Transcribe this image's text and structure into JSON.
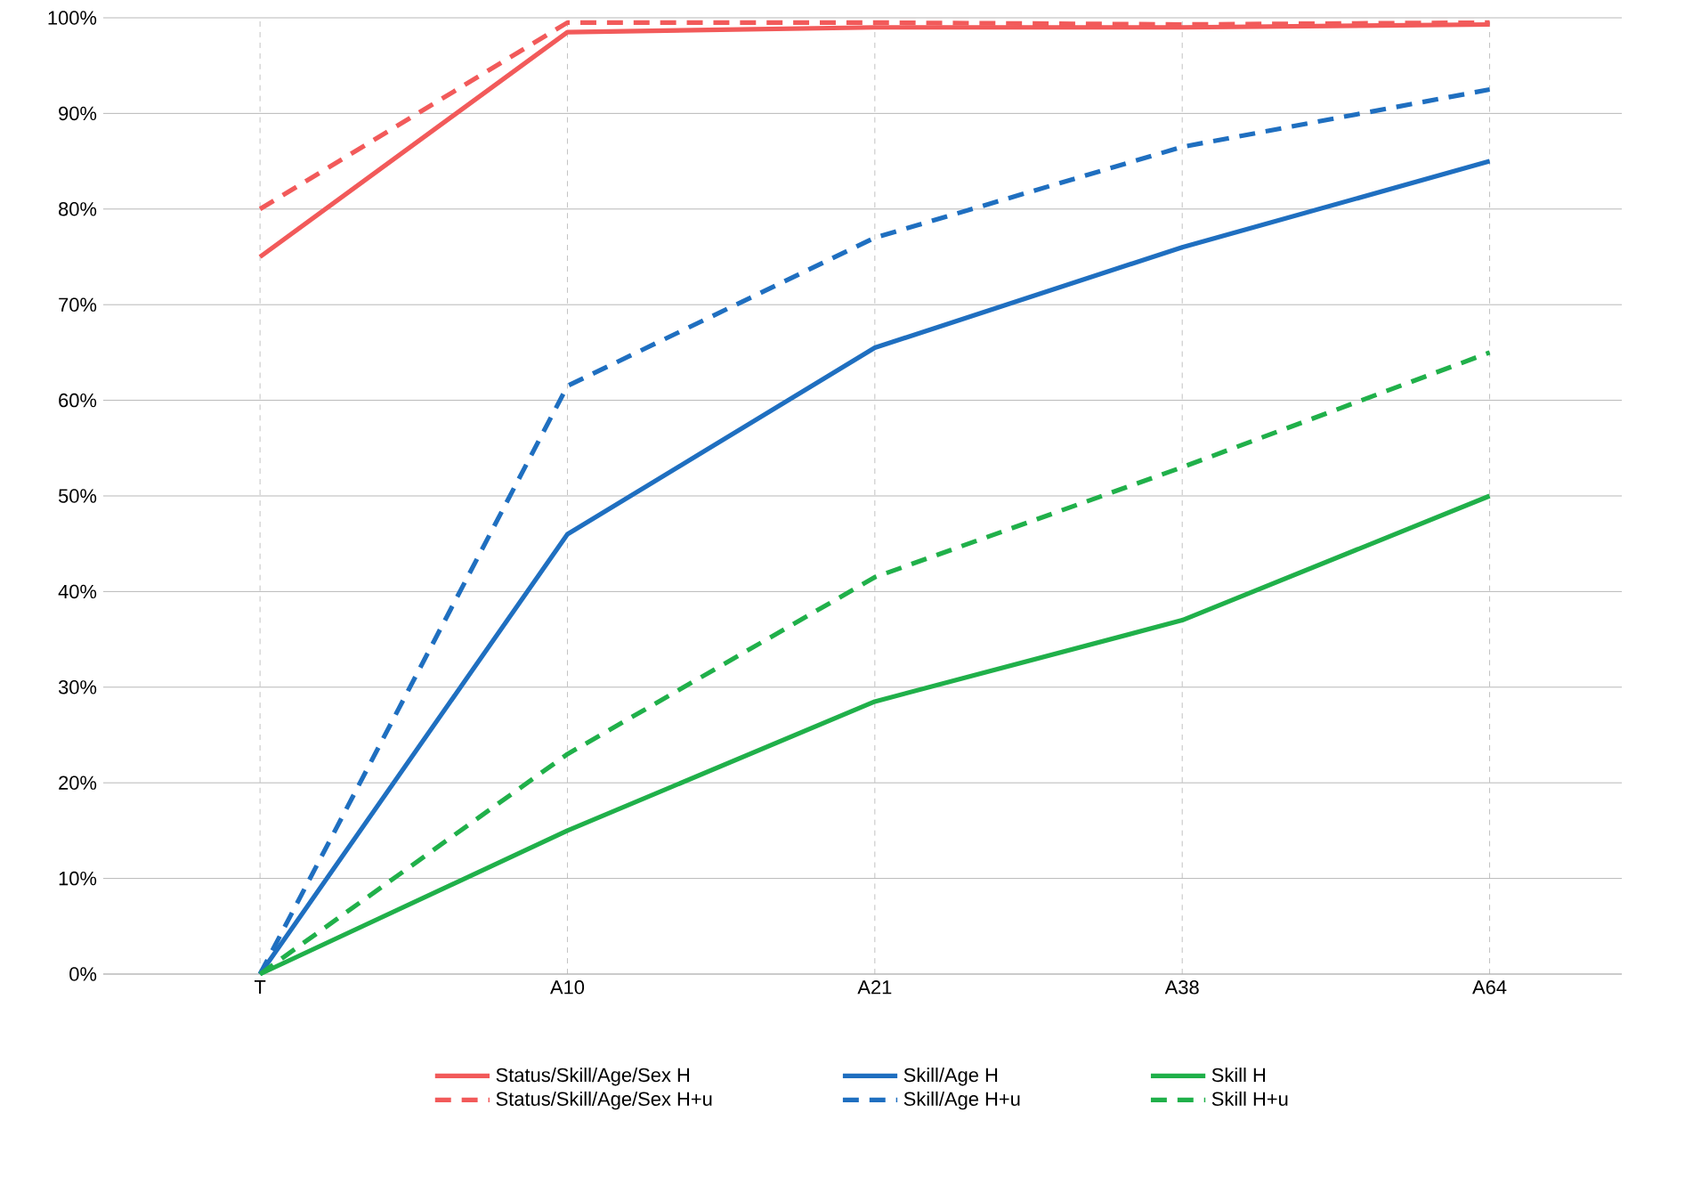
{
  "chart_data": {
    "type": "line",
    "categories": [
      "T",
      "A10",
      "A21",
      "A38",
      "A64"
    ],
    "ylim": [
      0,
      100
    ],
    "yticks": [
      {
        "value": 0,
        "label": "0%"
      },
      {
        "value": 10,
        "label": "10%"
      },
      {
        "value": 20,
        "label": "20%"
      },
      {
        "value": 30,
        "label": "30%"
      },
      {
        "value": 40,
        "label": "40%"
      },
      {
        "value": 50,
        "label": "50%"
      },
      {
        "value": 60,
        "label": "60%"
      },
      {
        "value": 70,
        "label": "70%"
      },
      {
        "value": 80,
        "label": "80%"
      },
      {
        "value": 90,
        "label": "90%"
      },
      {
        "value": 100,
        "label": "100%"
      }
    ],
    "grid": true,
    "legend": "bottom",
    "marker": "none",
    "series": [
      {
        "name": "Status/Skill/Age/Sex H",
        "color": "#f25a5a",
        "line_style": "solid",
        "values": [
          75,
          98.5,
          99,
          99,
          99.3
        ]
      },
      {
        "name": "Skill/Age H",
        "color": "#1f6fc0",
        "line_style": "solid",
        "values": [
          0,
          46,
          65.5,
          76,
          85
        ]
      },
      {
        "name": "Skill H",
        "color": "#20b04a",
        "line_style": "solid",
        "values": [
          0,
          15,
          28.5,
          37,
          50
        ]
      },
      {
        "name": "Status/Skill/Age/Sex H+u",
        "color": "#f25a5a",
        "line_style": "dashed",
        "values": [
          80,
          99.5,
          99.5,
          99.3,
          99.5
        ]
      },
      {
        "name": "Skill/Age H+u",
        "color": "#1f6fc0",
        "line_style": "dashed",
        "values": [
          0,
          61.5,
          77,
          86.5,
          92.5
        ]
      },
      {
        "name": "Skill H+u",
        "color": "#20b04a",
        "line_style": "dashed",
        "values": [
          0,
          23,
          41.5,
          53,
          65
        ]
      }
    ]
  }
}
